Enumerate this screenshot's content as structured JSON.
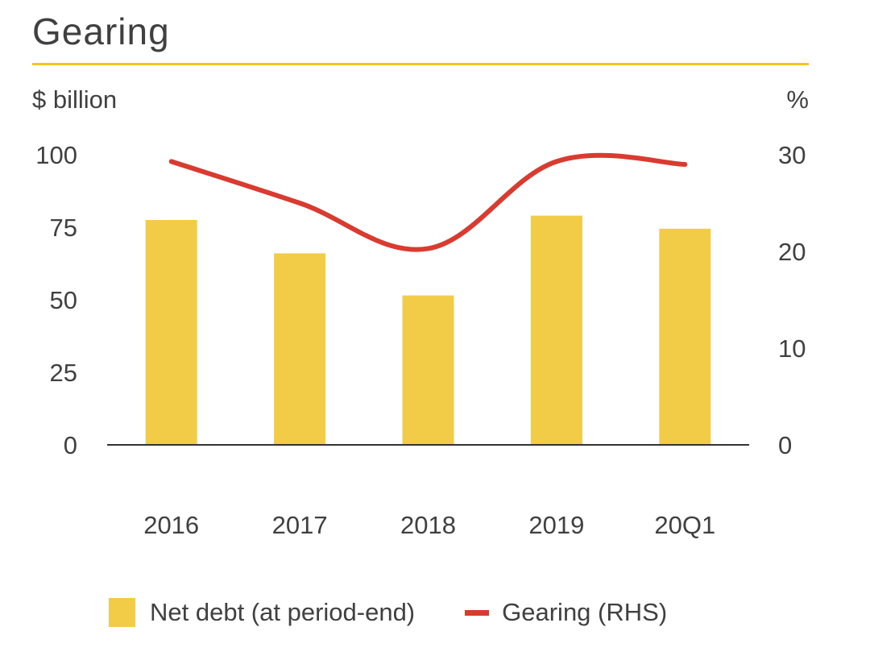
{
  "header": {
    "title": "Gearing"
  },
  "chart_data": {
    "type": "bar",
    "categories": [
      "2016",
      "2017",
      "2018",
      "2019",
      "20Q1"
    ],
    "series": [
      {
        "name": "Net debt (at period-end)",
        "type": "bar",
        "axis": "left",
        "values": [
          77.5,
          66,
          51.5,
          79,
          74.5
        ],
        "color": "#f2cc46"
      },
      {
        "name": "Gearing (RHS)",
        "type": "line",
        "axis": "right",
        "values": [
          29.3,
          25,
          20.3,
          29.3,
          29.0
        ],
        "color": "#d93b30"
      }
    ],
    "y_left": {
      "label": "$ billion",
      "ylim": [
        0,
        100
      ],
      "ticks": [
        "0",
        "25",
        "50",
        "75",
        "100"
      ]
    },
    "y_right": {
      "label": "%",
      "ylim": [
        0,
        30
      ],
      "ticks": [
        "0",
        "10",
        "20",
        "30"
      ]
    },
    "xlabel": "",
    "grid": false,
    "legend_position": "bottom"
  },
  "legend": {
    "items": [
      {
        "label": "Net debt (at period-end)",
        "kind": "box",
        "color": "#f2cc46"
      },
      {
        "label": "Gearing (RHS)",
        "kind": "line",
        "color": "#d93b30"
      }
    ]
  },
  "colors": {
    "accent_rule": "#f5c518",
    "axis": "#333333"
  }
}
